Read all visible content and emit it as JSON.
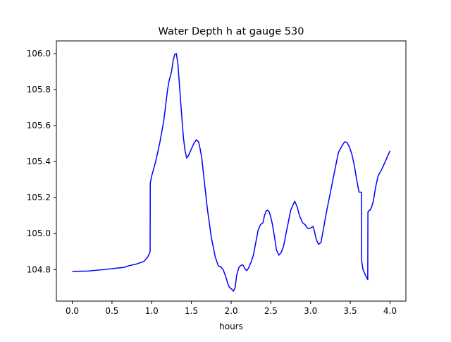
{
  "chart_data": {
    "type": "line",
    "title": "Water Depth h at gauge 530",
    "xlabel": "hours",
    "ylabel": "",
    "xlim": [
      -0.2,
      4.2
    ],
    "ylim": [
      104.625,
      106.07
    ],
    "grid": false,
    "xticks": [
      0.0,
      0.5,
      1.0,
      1.5,
      2.0,
      2.5,
      3.0,
      3.5,
      4.0
    ],
    "xtick_labels": [
      "0.0",
      "0.5",
      "1.0",
      "1.5",
      "2.0",
      "2.5",
      "3.0",
      "3.5",
      "4.0"
    ],
    "yticks": [
      104.8,
      105.0,
      105.2,
      105.4,
      105.6,
      105.8,
      106.0
    ],
    "ytick_labels": [
      "104.8",
      "105.0",
      "105.2",
      "105.4",
      "105.6",
      "105.8",
      "106.0"
    ],
    "line_color": "#0000ff",
    "series": [
      {
        "x": [
          0.0,
          0.2,
          0.4,
          0.6,
          0.65,
          0.7,
          0.8,
          0.9,
          0.95,
          0.98,
          0.982,
          1.0,
          1.05,
          1.1,
          1.15,
          1.2,
          1.22,
          1.25,
          1.27,
          1.29,
          1.31,
          1.33,
          1.35,
          1.37,
          1.4,
          1.42,
          1.44,
          1.46,
          1.5,
          1.53,
          1.56,
          1.59,
          1.61,
          1.63,
          1.66,
          1.7,
          1.75,
          1.8,
          1.84,
          1.87,
          1.9,
          1.94,
          1.96,
          1.98,
          2.0,
          2.03,
          2.05,
          2.07,
          2.1,
          2.13,
          2.15,
          2.18,
          2.2,
          2.22,
          2.25,
          2.28,
          2.31,
          2.34,
          2.37,
          2.4,
          2.42,
          2.44,
          2.46,
          2.48,
          2.5,
          2.52,
          2.55,
          2.57,
          2.6,
          2.63,
          2.66,
          2.7,
          2.75,
          2.8,
          2.83,
          2.86,
          2.9,
          2.93,
          2.96,
          3.0,
          3.03,
          3.05,
          3.07,
          3.1,
          3.13,
          3.16,
          3.2,
          3.25,
          3.3,
          3.35,
          3.4,
          3.43,
          3.46,
          3.49,
          3.52,
          3.55,
          3.58,
          3.61,
          3.64,
          3.642,
          3.66,
          3.68,
          3.7,
          3.72,
          3.722,
          3.74,
          3.75,
          3.77,
          3.79,
          3.82,
          3.85,
          3.9,
          3.95,
          4.0
        ],
        "y": [
          104.79,
          104.792,
          104.8,
          104.81,
          104.812,
          104.82,
          104.83,
          104.845,
          104.87,
          104.9,
          105.28,
          105.32,
          105.4,
          105.5,
          105.62,
          105.8,
          105.85,
          105.9,
          105.96,
          105.995,
          106.0,
          105.94,
          105.82,
          105.7,
          105.53,
          105.46,
          105.42,
          105.43,
          105.47,
          105.5,
          105.52,
          105.51,
          105.47,
          105.42,
          105.3,
          105.14,
          104.98,
          104.87,
          104.82,
          104.815,
          104.8,
          104.75,
          104.72,
          104.7,
          104.695,
          104.68,
          104.7,
          104.77,
          104.815,
          104.825,
          104.825,
          104.8,
          104.795,
          104.81,
          104.84,
          104.88,
          104.95,
          105.02,
          105.05,
          105.06,
          105.1,
          105.125,
          105.13,
          105.12,
          105.09,
          105.05,
          104.97,
          104.91,
          104.88,
          104.895,
          104.93,
          105.02,
          105.13,
          105.18,
          105.15,
          105.1,
          105.06,
          105.05,
          105.03,
          105.03,
          105.04,
          105.01,
          104.97,
          104.94,
          104.95,
          105.02,
          105.12,
          105.23,
          105.34,
          105.45,
          105.49,
          105.51,
          105.505,
          105.48,
          105.44,
          105.38,
          105.3,
          105.23,
          105.23,
          104.85,
          104.8,
          104.78,
          104.76,
          104.745,
          105.12,
          105.13,
          105.13,
          105.15,
          105.18,
          105.26,
          105.32,
          105.36,
          105.41,
          105.46
        ]
      }
    ]
  }
}
